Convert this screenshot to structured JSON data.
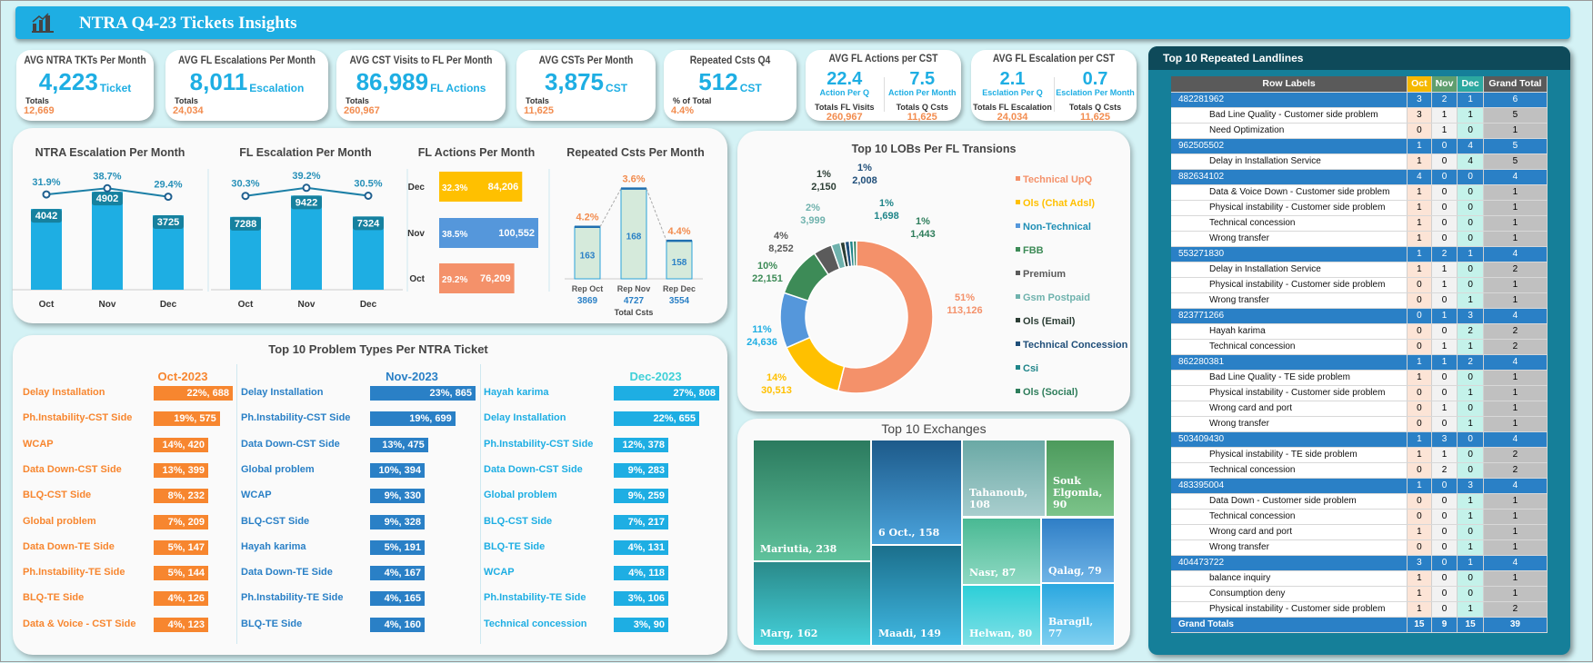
{
  "header": {
    "title": "NTRA Q4-23 Tickets Insights",
    "icon": "bar-chart-icon"
  },
  "kpis": [
    {
      "title": "AVG NTRA TKTs Per Month",
      "value": "4,223",
      "unit": "Ticket",
      "totals_label": "Totals",
      "totals": "12,669"
    },
    {
      "title": "AVG FL Escalations Per Month",
      "value": "8,011",
      "unit": "Escalation",
      "totals_label": "Totals",
      "totals": "24,034"
    },
    {
      "title": "AVG CST Visits to FL Per Month",
      "value": "86,989",
      "unit": "FL Actions",
      "totals_label": "Totals",
      "totals": "260,967"
    },
    {
      "title": "AVG CSTs Per Month",
      "value": "3,875",
      "unit": "CST",
      "totals_label": "Totals",
      "totals": "11,625"
    },
    {
      "title": "Repeated Csts Q4",
      "value": "512",
      "unit": "CST",
      "totals_label": "% of Total",
      "totals": "4.4%"
    }
  ],
  "kpis2": [
    {
      "title": "AVG FL Actions per CST",
      "left": {
        "value": "22.4",
        "unit": "Action Per Q",
        "label": "Totals FL Visits",
        "total": "260,967"
      },
      "right": {
        "value": "7.5",
        "unit": "Action Per Month",
        "label": "Totals Q Csts",
        "total": "11,625"
      }
    },
    {
      "title": "AVG FL Escalation per CST",
      "left": {
        "value": "2.1",
        "unit": "Esclation Per Q",
        "label": "Totals FL Escalation",
        "total": "24,034"
      },
      "right": {
        "value": "0.7",
        "unit": "Esclation Per Month",
        "label": "Totals Q Csts",
        "total": "11,625"
      }
    }
  ],
  "chart_data": [
    {
      "type": "bar",
      "title": "NTRA Escalation Per Month",
      "categories": [
        "Oct",
        "Nov",
        "Dec"
      ],
      "values": [
        4042,
        4902,
        3725
      ],
      "line_values_pct": [
        "31.9%",
        "38.7%",
        "29.4%"
      ],
      "color": "#1eaee3"
    },
    {
      "type": "bar",
      "title": "FL Escalation Per Month",
      "categories": [
        "Oct",
        "Nov",
        "Dec"
      ],
      "values": [
        7288,
        9422,
        7324
      ],
      "line_values_pct": [
        "30.3%",
        "39.2%",
        "30.5%"
      ],
      "color": "#1eaee3"
    },
    {
      "type": "bar",
      "orientation": "horizontal",
      "title": "FL Actions Per Month",
      "categories": [
        "Dec",
        "Nov",
        "Oct"
      ],
      "values": [
        84206,
        100552,
        76209
      ],
      "value_labels": [
        "84,206",
        "100,552",
        "76,209"
      ],
      "pct_labels": [
        "32.3%",
        "38.5%",
        "29.2%"
      ],
      "colors": [
        "#ffc000",
        "#5597db",
        "#f4916a"
      ]
    },
    {
      "type": "bar",
      "title": "Repeated Csts Per Month",
      "categories": [
        "Rep Oct",
        "Rep Nov",
        "Rep Dec"
      ],
      "values": [
        163,
        168,
        158
      ],
      "pct_labels": [
        "4.2%",
        "3.6%",
        "4.4%"
      ],
      "totals": [
        3869,
        4727,
        3554
      ],
      "totals_caption": "Total  Csts"
    },
    {
      "type": "pie",
      "donut": true,
      "title": "Top 10 LOBs Per FL Transions",
      "legend": "right",
      "labels": [
        "Technical UpQ",
        "Ols (Chat Adsl)",
        "Non-Technical",
        "FBB",
        "Premium",
        "Gsm Postpaid",
        "Ols (Email)",
        "Technical Concession",
        "Csi",
        "Ols (Social)"
      ],
      "values": [
        113126,
        30513,
        24636,
        22151,
        8252,
        3999,
        2150,
        2008,
        1698,
        1443
      ],
      "value_labels": [
        "113,126",
        "30,513",
        "24,636",
        "22,151",
        "8,252",
        "3,999",
        "2,150",
        "2,008",
        "1,698",
        "1,443"
      ],
      "pct_labels": [
        "51%",
        "14%",
        "11%",
        "10%",
        "4%",
        "2%",
        "1%",
        "1%",
        "1%",
        "1%"
      ],
      "colors": [
        "#f4916a",
        "#ffc000",
        "#5597db",
        "#3d8b57",
        "#5b5b5b",
        "#6fb2ad",
        "#2c3e35",
        "#1f4e79",
        "#1f8589",
        "#2e7d5b"
      ]
    },
    {
      "type": "bar",
      "orientation": "horizontal",
      "title": "Top 10 Problem Types Per NTRA Ticket",
      "panels": [
        {
          "name": "Oct-2023",
          "color": "#f7862f",
          "categories": [
            "Delay Installation",
            "Ph.Instability-CST Side",
            "WCAP",
            "Data Down-CST Side",
            "BLQ-CST Side",
            "Global problem",
            "Data Down-TE Side",
            "Ph.Instability-TE Side",
            "BLQ-TE Side",
            "Data & Voice - CST Side"
          ],
          "values": [
            688,
            575,
            420,
            399,
            232,
            209,
            147,
            144,
            126,
            123
          ],
          "pct": [
            "22%",
            "19%",
            "14%",
            "13%",
            "8%",
            "7%",
            "5%",
            "5%",
            "4%",
            "4%"
          ]
        },
        {
          "name": "Nov-2023",
          "color": "#2a80c6",
          "categories": [
            "Delay Installation",
            "Ph.Instability-CST Side",
            "Data Down-CST Side",
            "Global problem",
            "WCAP",
            "BLQ-CST Side",
            "Hayah karima",
            "Data Down-TE Side",
            "Ph.Instability-TE Side",
            "BLQ-TE Side"
          ],
          "values": [
            865,
            699,
            475,
            394,
            330,
            328,
            191,
            167,
            165,
            160
          ],
          "pct": [
            "23%",
            "19%",
            "13%",
            "10%",
            "9%",
            "9%",
            "5%",
            "4%",
            "4%",
            "4%"
          ]
        },
        {
          "name": "Dec-2023",
          "color": "#1eaee3",
          "categories": [
            "Hayah karima",
            "Delay Installation",
            "Ph.Instability-CST Side",
            "Data Down-CST Side",
            "Global problem",
            "BLQ-CST Side",
            "BLQ-TE Side",
            "WCAP",
            "Ph.Instability-TE Side",
            "Technical concession"
          ],
          "values": [
            808,
            655,
            378,
            283,
            259,
            217,
            131,
            118,
            106,
            90
          ],
          "pct": [
            "27%",
            "22%",
            "12%",
            "9%",
            "9%",
            "7%",
            "4%",
            "4%",
            "3%",
            "3%"
          ]
        }
      ]
    },
    {
      "type": "treemap",
      "title": "Top 10 Exchanges",
      "labels": [
        "Mariutia",
        "Marg",
        "6 Oct.",
        "Maadi",
        "Tahanoub",
        "Souk Elgomla",
        "Nasr",
        "Helwan",
        "Qalag",
        "Baragil"
      ],
      "values": [
        238,
        162,
        158,
        149,
        108,
        90,
        87,
        80,
        79,
        77
      ]
    }
  ],
  "repeated": {
    "title": "Top 10 Repeated Landlines",
    "columns": [
      "Row Labels",
      "Oct",
      "Nov",
      "Dec",
      "Grand Total"
    ],
    "groups": [
      {
        "id": "482281962",
        "v": [
          3,
          2,
          1,
          6
        ],
        "rows": [
          [
            "Bad Line Quality - Customer side problem",
            3,
            1,
            1,
            5
          ],
          [
            "Need Optimization",
            0,
            1,
            0,
            1
          ]
        ]
      },
      {
        "id": "962505502",
        "v": [
          1,
          0,
          4,
          5
        ],
        "rows": [
          [
            "Delay in Installation Service",
            1,
            0,
            4,
            5
          ]
        ]
      },
      {
        "id": "882634102",
        "v": [
          4,
          0,
          0,
          4
        ],
        "rows": [
          [
            "Data & Voice Down - Customer side problem",
            1,
            0,
            0,
            1
          ],
          [
            "Physical instability - Customer side problem",
            1,
            0,
            0,
            1
          ],
          [
            "Technical concession",
            1,
            0,
            0,
            1
          ],
          [
            "Wrong transfer",
            1,
            0,
            0,
            1
          ]
        ]
      },
      {
        "id": "553271830",
        "v": [
          1,
          2,
          1,
          4
        ],
        "rows": [
          [
            "Delay in Installation Service",
            1,
            1,
            0,
            2
          ],
          [
            "Physical instability - Customer side problem",
            0,
            1,
            0,
            1
          ],
          [
            "Wrong transfer",
            0,
            0,
            1,
            1
          ]
        ]
      },
      {
        "id": "823771266",
        "v": [
          0,
          1,
          3,
          4
        ],
        "rows": [
          [
            "Hayah karima",
            0,
            0,
            2,
            2
          ],
          [
            "Technical concession",
            0,
            1,
            1,
            2
          ]
        ]
      },
      {
        "id": "862280381",
        "v": [
          1,
          1,
          2,
          4
        ],
        "rows": [
          [
            "Bad Line Quality - TE side problem",
            1,
            0,
            0,
            1
          ],
          [
            "Physical instability - Customer side problem",
            0,
            0,
            1,
            1
          ],
          [
            "Wrong card and port",
            0,
            1,
            0,
            1
          ],
          [
            "Wrong transfer",
            0,
            0,
            1,
            1
          ]
        ]
      },
      {
        "id": "503409430",
        "v": [
          1,
          3,
          0,
          4
        ],
        "rows": [
          [
            "Physical instability - TE side problem",
            1,
            1,
            0,
            2
          ],
          [
            "Technical concession",
            0,
            2,
            0,
            2
          ]
        ]
      },
      {
        "id": "483395004",
        "v": [
          1,
          0,
          3,
          4
        ],
        "rows": [
          [
            "Data Down - Customer side problem",
            0,
            0,
            1,
            1
          ],
          [
            "Technical concession",
            0,
            0,
            1,
            1
          ],
          [
            "Wrong card and port",
            1,
            0,
            0,
            1
          ],
          [
            "Wrong transfer",
            0,
            0,
            1,
            1
          ]
        ]
      },
      {
        "id": "404473722",
        "v": [
          3,
          0,
          1,
          4
        ],
        "rows": [
          [
            "balance inquiry",
            1,
            0,
            0,
            1
          ],
          [
            "Consumption deny",
            1,
            0,
            0,
            1
          ],
          [
            "Physical instability - Customer side problem",
            1,
            0,
            1,
            2
          ]
        ]
      }
    ],
    "total": {
      "label": "Grand Totals",
      "v": [
        15,
        9,
        15,
        39
      ]
    }
  }
}
